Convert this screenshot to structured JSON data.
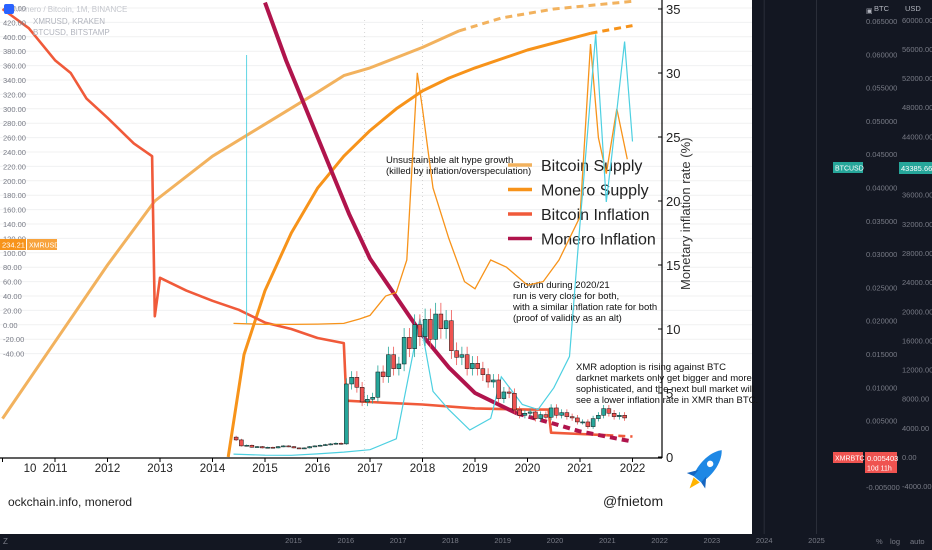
{
  "header": {
    "title": "Monero / Bitcoin, 1M, BINANCE",
    "overlays": [
      "XMRUSD, KRAKEN",
      "BTCUSD, BITSTAMP"
    ],
    "left_marker": "234.21",
    "left_marker_label": "XMRUSD"
  },
  "right_axes": {
    "btc_axis_title": "BTC",
    "usd_axis_title": "USD",
    "btc_badge": "BTCUSD",
    "btc_price": "43385.66",
    "xmrbtc_badge": "XMRBTC",
    "xmrbtc_price": "0.005403",
    "countdown": "10d 11h"
  },
  "watermark_left": "ockchain.info, monerod",
  "watermark_right": "@fnietom",
  "bottom_bar": {
    "left_icon": "Z",
    "right_items": [
      "%",
      "log",
      "auto"
    ]
  },
  "colors": {
    "background_chart": "#ffffff",
    "background_dark": "#131722",
    "bitcoin_supply": "#f2b25e",
    "monero_supply": "#f7931a",
    "bitcoin_inflation": "#f05a3a",
    "monero_inflation": "#b0144c",
    "candle_up": "#26a69a",
    "candle_down": "#ef5350",
    "xmrusd_line": "#f7931a",
    "btcusd_line": "#4dd0e1",
    "xmrbtc_badge": "#ef5350",
    "btcusd_badge": "#26a69a"
  },
  "annotations": [
    {
      "lines": [
        "Unsustainable alt hype growth",
        "(killed by inflation/overspeculation)"
      ]
    },
    {
      "lines": [
        "Growth during 2020/21",
        "run is very close for both,",
        "with a similar inflation rate for both",
        "(proof of validity as an alt)"
      ]
    },
    {
      "lines": [
        "XMR adoption is rising against BTC",
        "darknet markets only get bigger and more",
        "sophisticated, and the next bull market will",
        "see a lower inflation rate in XMR than BTC."
      ]
    }
  ],
  "chart_data": {
    "type": "line",
    "overlay_image": {
      "ylabel": "Monetary inflation rate (%)",
      "ylim": [
        0,
        35
      ],
      "yticks": [
        "0",
        "5",
        "10",
        "15",
        "20",
        "25",
        "30",
        "35"
      ],
      "xticks": [
        "10",
        "2011",
        "2012",
        "2013",
        "2014",
        "2015",
        "2016",
        "2017",
        "2018",
        "2019",
        "2020",
        "2021",
        "2022"
      ],
      "series": [
        {
          "name": "Bitcoin Supply",
          "color": "#f2b25e",
          "dashed_after": 2018.7,
          "x": [
            2010.0,
            2011.0,
            2012.0,
            2012.9,
            2014.0,
            2015.0,
            2016.0,
            2016.5,
            2017.0,
            2018.0,
            2018.7,
            2019.5,
            2020.5,
            2022.0
          ],
          "y": [
            3.0,
            9.0,
            15.0,
            20.0,
            23.5,
            26.0,
            28.5,
            29.8,
            30.4,
            32.0,
            33.3,
            34.3,
            35.0,
            35.6
          ]
        },
        {
          "name": "Monero Supply",
          "color": "#f7931a",
          "dashed_after": 2021.2,
          "x": [
            2014.3,
            2014.6,
            2015.0,
            2015.5,
            2016.0,
            2016.5,
            2017.0,
            2017.5,
            2018.0,
            2018.5,
            2019.0,
            2020.0,
            2021.2,
            2022.0
          ],
          "y": [
            0.0,
            8.0,
            13.0,
            17.5,
            21.0,
            23.5,
            25.5,
            27.2,
            28.6,
            29.6,
            30.4,
            31.8,
            33.1,
            33.7
          ]
        },
        {
          "name": "Bitcoin Inflation",
          "color": "#f05a3a",
          "dashed_after": 2021.5,
          "x": [
            2010.0,
            2010.5,
            2011.0,
            2011.3,
            2011.6,
            2012.0,
            2012.5,
            2012.85,
            2012.9,
            2013.0,
            2013.5,
            2014.0,
            2014.5,
            2015.0,
            2015.5,
            2016.0,
            2016.5,
            2016.55,
            2017.0,
            2018.0,
            2019.0,
            2020.0,
            2020.4,
            2020.45,
            2021.0,
            2021.5,
            2022.0
          ],
          "y": [
            35.0,
            33.5,
            31.0,
            30.0,
            28.0,
            26.5,
            24.5,
            23.5,
            11.0,
            14.0,
            13.0,
            12.2,
            11.5,
            10.5,
            10.0,
            9.3,
            8.9,
            4.4,
            4.3,
            4.1,
            3.8,
            3.7,
            3.7,
            1.9,
            1.8,
            1.7,
            1.6
          ]
        },
        {
          "name": "Monero Inflation",
          "color": "#b0144c",
          "dashed_after": 2019.8,
          "x": [
            2015.0,
            2015.4,
            2015.8,
            2016.2,
            2016.6,
            2017.0,
            2017.5,
            2018.0,
            2018.5,
            2019.0,
            2019.8,
            2020.5,
            2021.0,
            2021.5,
            2022.0
          ],
          "y": [
            35.5,
            31.0,
            27.0,
            23.0,
            19.0,
            15.5,
            12.5,
            9.5,
            7.0,
            5.0,
            3.4,
            2.6,
            2.0,
            1.6,
            1.2
          ]
        }
      ]
    },
    "price_axis_left": {
      "ticks": [
        "440.00",
        "420.00",
        "400.00",
        "380.00",
        "360.00",
        "340.00",
        "320.00",
        "300.00",
        "280.00",
        "260.00",
        "240.00",
        "220.00",
        "200.00",
        "180.00",
        "160.00",
        "140.00",
        "120.00",
        "100.00",
        "80.00",
        "60.00",
        "40.00",
        "20.00",
        "0.00",
        "-20.00",
        "-40.00"
      ]
    },
    "price_axis_btc": {
      "ticks": [
        "0.065000",
        "0.060000",
        "0.055000",
        "0.050000",
        "0.045000",
        "0.040000",
        "0.035000",
        "0.030000",
        "0.025000",
        "0.020000",
        "0.015000",
        "0.010000",
        "0.005000",
        "0.000000",
        "-0.005000"
      ]
    },
    "price_axis_usd": {
      "ticks": [
        "64000.00",
        "60000.00",
        "56000.00",
        "52000.00",
        "48000.00",
        "44000.00",
        "40000.00",
        "36000.00",
        "32000.00",
        "28000.00",
        "24000.00",
        "20000.00",
        "16000.00",
        "12000.00",
        "8000.00",
        "4000.00",
        "0.00",
        "-4000.00"
      ]
    },
    "time_axis": {
      "ticks": [
        "2015",
        "2016",
        "2017",
        "2018",
        "2019",
        "2020",
        "2021",
        "2022",
        "2023",
        "2024",
        "2025"
      ]
    },
    "xmrusd": {
      "x": [
        2014.4,
        2015.0,
        2015.5,
        2016.0,
        2016.5,
        2016.8,
        2017.0,
        2017.3,
        2017.5,
        2017.7,
        2017.9,
        2018.0,
        2018.2,
        2018.5,
        2018.8,
        2019.0,
        2019.3,
        2019.6,
        2020.0,
        2020.3,
        2020.6,
        2021.0,
        2021.2,
        2021.35,
        2021.5,
        2021.7,
        2021.9
      ],
      "y": [
        2,
        0.5,
        0.5,
        1,
        2,
        8,
        13,
        40,
        45,
        90,
        350,
        300,
        190,
        120,
        60,
        50,
        90,
        80,
        55,
        60,
        90,
        150,
        390,
        260,
        210,
        300,
        230
      ]
    },
    "btcusd": {
      "x": [
        2014.4,
        2015.0,
        2015.5,
        2016.0,
        2016.5,
        2017.0,
        2017.5,
        2017.95,
        2018.2,
        2018.5,
        2018.9,
        2019.3,
        2019.5,
        2019.9,
        2020.2,
        2020.5,
        2020.8,
        2021.0,
        2021.3,
        2021.5,
        2021.6,
        2021.85,
        2022.0
      ],
      "y": [
        400,
        250,
        230,
        430,
        670,
        1000,
        2500,
        19000,
        9000,
        6500,
        3700,
        5300,
        11000,
        7200,
        6500,
        9500,
        13800,
        32000,
        58000,
        35000,
        41000,
        57000,
        43300
      ]
    },
    "xmrbtc_candles": {
      "x": [
        2014.45,
        2014.55,
        2014.65,
        2014.75,
        2014.85,
        2014.95,
        2015.05,
        2015.15,
        2015.25,
        2015.35,
        2015.45,
        2015.55,
        2015.65,
        2015.75,
        2015.85,
        2015.95,
        2016.05,
        2016.15,
        2016.25,
        2016.35,
        2016.45,
        2016.55,
        2016.65,
        2016.75,
        2016.85,
        2016.95,
        2017.05,
        2017.15,
        2017.25,
        2017.35,
        2017.45,
        2017.55,
        2017.65,
        2017.75,
        2017.85,
        2017.95,
        2018.05,
        2018.15,
        2018.25,
        2018.35,
        2018.45,
        2018.55,
        2018.65,
        2018.75,
        2018.85,
        2018.95,
        2019.05,
        2019.15,
        2019.25,
        2019.35,
        2019.45,
        2019.55,
        2019.65,
        2019.75,
        2019.85,
        2019.95,
        2020.05,
        2020.15,
        2020.25,
        2020.35,
        2020.45,
        2020.55,
        2020.65,
        2020.75,
        2020.85,
        2020.95,
        2021.05,
        2021.15,
        2021.25,
        2021.35,
        2021.45,
        2021.55,
        2021.65,
        2021.75,
        2021.85
      ],
      "y": [
        0.0021,
        0.0012,
        0.0013,
        0.001,
        0.0011,
        0.0009,
        0.001,
        0.0009,
        0.0011,
        0.0012,
        0.0011,
        0.0009,
        0.0008,
        0.0009,
        0.0011,
        0.0012,
        0.0013,
        0.0014,
        0.0015,
        0.0016,
        0.0015,
        0.0105,
        0.0115,
        0.01,
        0.0078,
        0.0082,
        0.0085,
        0.0123,
        0.0116,
        0.0149,
        0.0128,
        0.0135,
        0.0175,
        0.0158,
        0.0194,
        0.0176,
        0.0202,
        0.0172,
        0.021,
        0.0188,
        0.02,
        0.0155,
        0.0145,
        0.0149,
        0.0128,
        0.0136,
        0.0128,
        0.0119,
        0.0108,
        0.0111,
        0.0083,
        0.0093,
        0.0091,
        0.0066,
        0.0058,
        0.0061,
        0.0063,
        0.0053,
        0.0059,
        0.0055,
        0.0069,
        0.0058,
        0.0062,
        0.0056,
        0.0054,
        0.0048,
        0.0048,
        0.0041,
        0.0053,
        0.0058,
        0.0068,
        0.0061,
        0.0056,
        0.0058,
        0.0054
      ]
    },
    "legend": [
      "Bitcoin Supply",
      "Monero Supply",
      "Bitcoin Inflation",
      "Monero Inflation"
    ]
  }
}
